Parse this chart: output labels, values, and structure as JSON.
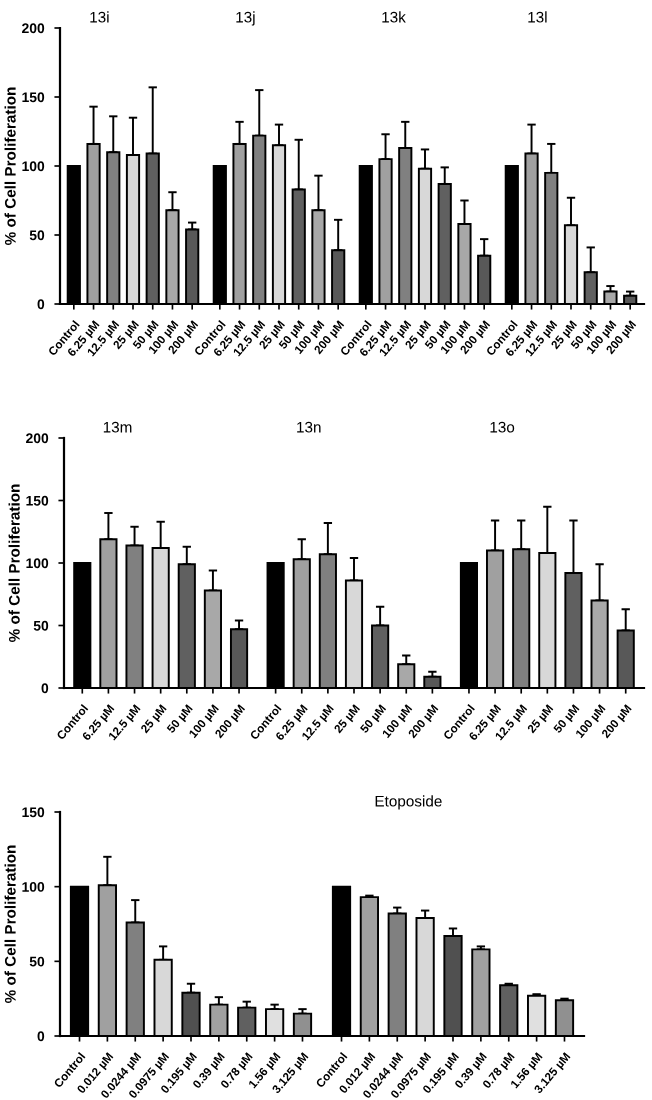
{
  "chart_data": [
    {
      "type": "bar",
      "title": "13i",
      "ylabel": "% of Cell Proliferation",
      "categories": [
        "Control",
        "6.25 µM",
        "12.5 µM",
        "25 µM",
        "50 µM",
        "100 µM",
        "200 µM"
      ],
      "values": [
        100,
        116,
        110,
        108,
        109,
        68,
        54
      ],
      "errors": [
        null,
        27,
        26,
        27,
        48,
        13,
        5
      ],
      "colors": [
        "#000000",
        "#a0a0a0",
        "#808080",
        "#d8d8d8",
        "#606060",
        "#a8a8a8",
        "#585858"
      ],
      "ylim": [
        0,
        200
      ],
      "yticks": [
        0,
        50,
        100,
        150,
        200
      ]
    },
    {
      "type": "bar",
      "title": "13j",
      "categories": [
        "Control",
        "6.25 µM",
        "12.5 µM",
        "25 µM",
        "50 µM",
        "100 µM",
        "200 µM"
      ],
      "values": [
        100,
        116,
        122,
        115,
        83,
        68,
        39
      ],
      "errors": [
        null,
        16,
        33,
        15,
        36,
        25,
        22
      ],
      "colors": [
        "#000000",
        "#a0a0a0",
        "#808080",
        "#d8d8d8",
        "#606060",
        "#a8a8a8",
        "#585858"
      ],
      "ylim": [
        0,
        200
      ],
      "yticks": [
        0,
        50,
        100,
        150,
        200
      ],
      "tick_labels": "x"
    },
    {
      "type": "bar",
      "title": "13k",
      "categories": [
        "Control",
        "6.25 µM",
        "12.5 µM",
        "25 µM",
        "50 µM",
        "100 µM",
        "200 µM"
      ],
      "values": [
        100,
        105,
        113,
        98,
        87,
        58,
        35
      ],
      "errors": [
        null,
        18,
        19,
        14,
        12,
        17,
        12
      ],
      "colors": [
        "#000000",
        "#a0a0a0",
        "#808080",
        "#d8d8d8",
        "#606060",
        "#a8a8a8",
        "#585858"
      ],
      "ylim": [
        0,
        200
      ],
      "yticks": [
        0,
        50,
        100,
        150,
        200
      ],
      "tick_labels": "x"
    },
    {
      "type": "bar",
      "title": "13l",
      "categories": [
        "Control",
        "6.25 µM",
        "12.5 µM",
        "25 µM",
        "50 µM",
        "100 µM",
        "200 µM"
      ],
      "values": [
        100,
        109,
        95,
        57,
        23,
        9,
        6
      ],
      "errors": [
        null,
        21,
        21,
        20,
        18,
        4,
        3
      ],
      "colors": [
        "#000000",
        "#a0a0a0",
        "#808080",
        "#d8d8d8",
        "#606060",
        "#a8a8a8",
        "#585858"
      ],
      "ylim": [
        0,
        200
      ],
      "yticks": [
        0,
        50,
        100,
        150,
        200
      ],
      "tick_labels": "x"
    },
    {
      "type": "bar",
      "title": "13m",
      "ylabel": "% of Cell Proliferation",
      "categories": [
        "Control",
        "6.25 µM",
        "12.5 µM",
        "25 µM",
        "50 µM",
        "100 µM",
        "200 µM"
      ],
      "values": [
        100,
        119,
        114,
        112,
        99,
        78,
        47
      ],
      "errors": [
        null,
        21,
        15,
        21,
        14,
        16,
        7
      ],
      "colors": [
        "#000000",
        "#a0a0a0",
        "#808080",
        "#d8d8d8",
        "#606060",
        "#a8a8a8",
        "#585858"
      ],
      "ylim": [
        0,
        200
      ],
      "yticks": [
        0,
        50,
        100,
        150,
        200
      ]
    },
    {
      "type": "bar",
      "title": "13n",
      "categories": [
        "Control",
        "6.25 µM",
        "12.5 µM",
        "25 µM",
        "50 µM",
        "100 µM",
        "200 µM"
      ],
      "values": [
        100,
        103,
        107,
        86,
        50,
        19,
        9
      ],
      "errors": [
        null,
        16,
        25,
        18,
        15,
        7,
        4
      ],
      "colors": [
        "#000000",
        "#a0a0a0",
        "#808080",
        "#d8d8d8",
        "#606060",
        "#a8a8a8",
        "#585858"
      ],
      "ylim": [
        0,
        200
      ],
      "yticks": [
        0,
        50,
        100,
        150,
        200
      ],
      "tick_labels": "x"
    },
    {
      "type": "bar",
      "title": "13o",
      "categories": [
        "Control",
        "6.25 µM",
        "12.5 µM",
        "25 µM",
        "50 µM",
        "100 µM",
        "200 µM"
      ],
      "values": [
        100,
        110,
        111,
        108,
        92,
        70,
        46
      ],
      "errors": [
        null,
        24,
        23,
        37,
        42,
        29,
        17
      ],
      "colors": [
        "#000000",
        "#a0a0a0",
        "#808080",
        "#d8d8d8",
        "#606060",
        "#a8a8a8",
        "#585858"
      ],
      "ylim": [
        0,
        200
      ],
      "yticks": [
        0,
        50,
        100,
        150,
        200
      ],
      "tick_labels": "x"
    },
    {
      "type": "bar",
      "ylabel": "% of Cell Proliferation",
      "categories": [
        "Control",
        "0.012 µM",
        "0.0244 µM",
        "0.0975 µM",
        "0.195 µM",
        "0.39 µM",
        "0.78 µM",
        "1.56 µM",
        "3.125 µM"
      ],
      "values": [
        100,
        101,
        76,
        51,
        29,
        21,
        19,
        18,
        15
      ],
      "errors": [
        null,
        19,
        15,
        9,
        6,
        5,
        4,
        3,
        3
      ],
      "colors": [
        "#000000",
        "#a0a0a0",
        "#808080",
        "#d8d8d8",
        "#505050",
        "#a0a0a0",
        "#606060",
        "#e0e0e0",
        "#909090"
      ],
      "ylim": [
        0,
        150
      ],
      "yticks": [
        0,
        50,
        100,
        150
      ]
    },
    {
      "type": "bar",
      "title": "Etoposide",
      "categories": [
        "Control",
        "0.012 µM",
        "0.0244 µM",
        "0.0975 µM",
        "0.195 µM",
        "0.39 µM",
        "0.78 µM",
        "1.56 µM",
        "3.125 µM"
      ],
      "values": [
        100,
        93,
        82,
        79,
        67,
        58,
        34,
        27,
        24
      ],
      "errors": [
        null,
        1,
        4,
        5,
        5,
        2,
        1,
        1,
        1
      ],
      "colors": [
        "#000000",
        "#a0a0a0",
        "#808080",
        "#d8d8d8",
        "#505050",
        "#a0a0a0",
        "#606060",
        "#e0e0e0",
        "#909090"
      ],
      "ylim": [
        0,
        150
      ],
      "yticks": [
        0,
        50,
        100,
        150
      ],
      "tick_labels": "x"
    }
  ]
}
